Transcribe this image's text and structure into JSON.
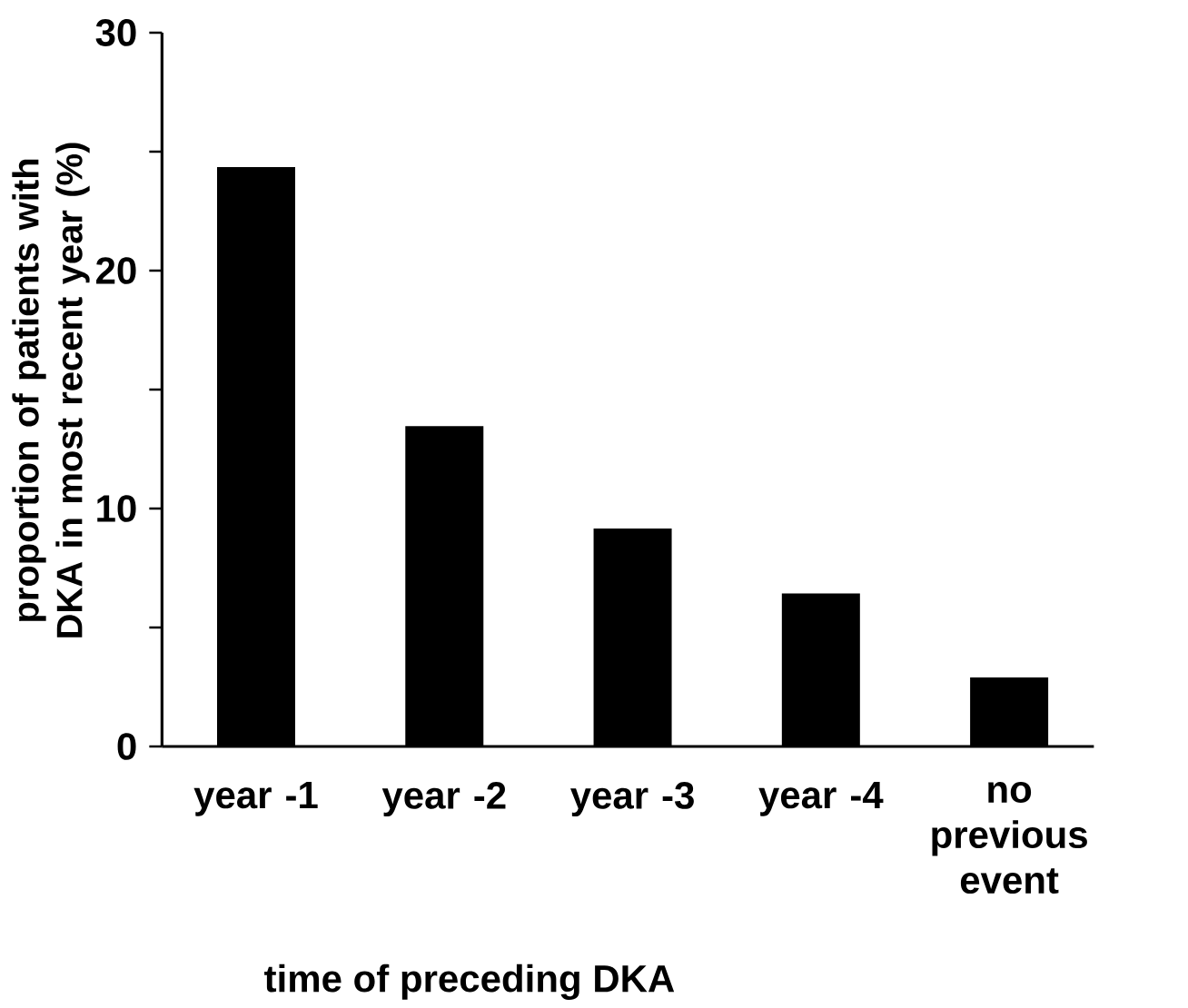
{
  "chart_data": {
    "type": "bar",
    "categories": [
      "year -1",
      "year -2",
      "year -3",
      "year -4",
      "no previous event"
    ],
    "values": [
      24.35,
      13.46,
      9.16,
      6.43,
      2.9
    ],
    "color": "#000000",
    "xlabel": "time of preceding DKA",
    "ylabel": "proportion of patients with DKA in most recent year  (%)",
    "ylim": [
      0,
      30
    ],
    "yticks": [
      0,
      {
        "value": 5,
        "label": null
      },
      10,
      {
        "value": 15,
        "label": null
      },
      20,
      {
        "value": 25,
        "label": null
      },
      30
    ],
    "grid": false,
    "legend": false
  }
}
